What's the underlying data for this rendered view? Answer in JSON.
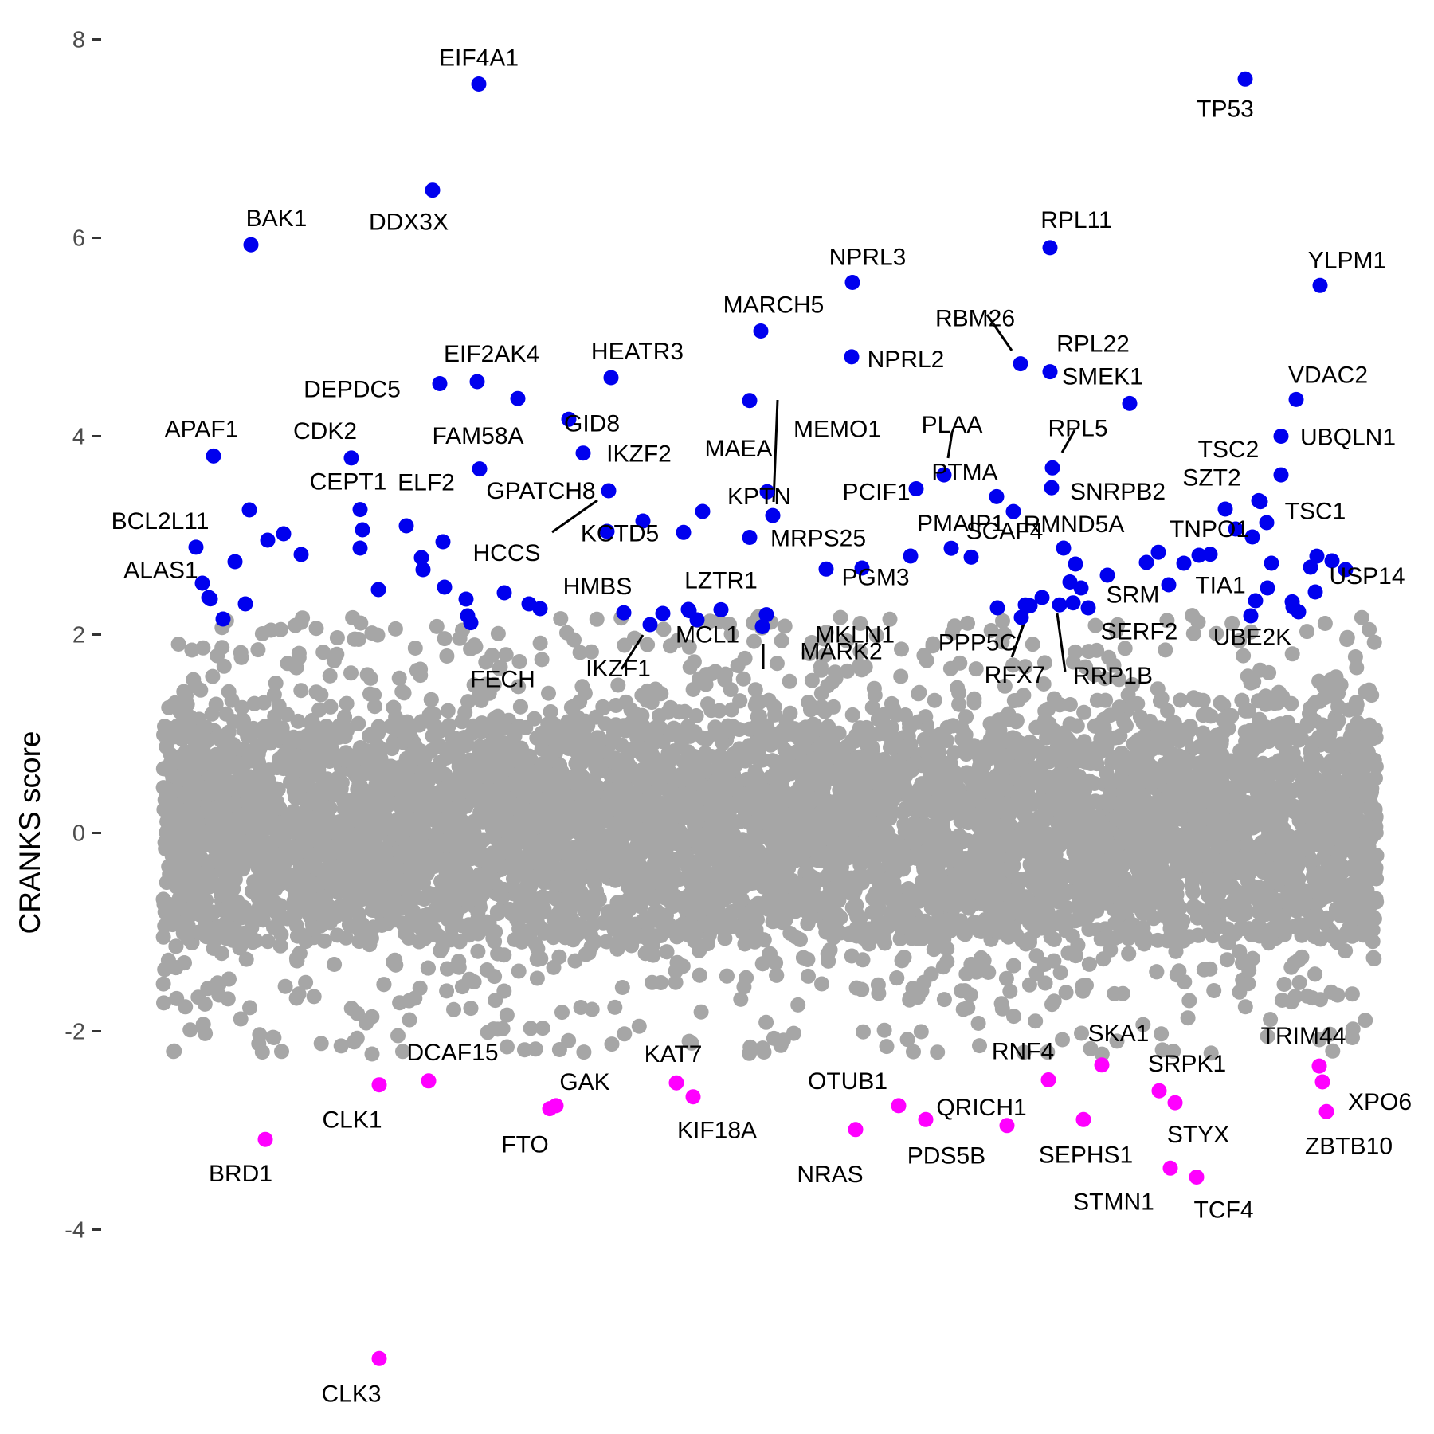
{
  "chart_data": {
    "type": "scatter",
    "title": "",
    "xlabel": "",
    "ylabel": "CRANKS score",
    "ylim": [
      -5.4,
      8.2
    ],
    "y_ticks": [
      {
        "value": 8,
        "label": "8"
      },
      {
        "value": 6,
        "label": "6"
      },
      {
        "value": 4,
        "label": "4"
      },
      {
        "value": 2,
        "label": "2"
      },
      {
        "value": 0,
        "label": "0"
      },
      {
        "value": -2,
        "label": "-2"
      },
      {
        "value": -4,
        "label": "-4"
      }
    ],
    "colors": {
      "background": "#a6a6a6",
      "positive": "#0000ee",
      "negative": "#ff00ff",
      "text": "#000000"
    },
    "grid": false,
    "legend": "none",
    "background_series": {
      "name": "",
      "color": "#a6a6a6",
      "count": 6000,
      "spread": "genes spread across all ranks, bulk between -1.5 and 1.5 CRANKS score"
    },
    "highlighted_positive": [
      {
        "gene": "EIF4A1",
        "y": 7.55
      },
      {
        "gene": "TP53",
        "y": 7.6
      },
      {
        "gene": "DDX3X",
        "y": 6.48
      },
      {
        "gene": "BAK1",
        "y": 5.93
      },
      {
        "gene": "RPL11",
        "y": 5.9
      },
      {
        "gene": "NPRL3",
        "y": 5.55
      },
      {
        "gene": "YLPM1",
        "y": 5.52
      },
      {
        "gene": "MARCH5",
        "y": 5.06
      },
      {
        "gene": "NPRL2",
        "y": 4.8
      },
      {
        "gene": "RBM26",
        "y": 4.73
      },
      {
        "gene": "RPL22",
        "y": 4.65
      },
      {
        "gene": "HEATR3",
        "y": 4.59
      },
      {
        "gene": "EIF2AK4",
        "y": 4.55
      },
      {
        "gene": "DEPDC5",
        "y": 4.53
      },
      {
        "gene": "FAM58A",
        "y": 4.38
      },
      {
        "gene": "MEMO1",
        "y": 4.36
      },
      {
        "gene": "VDAC2",
        "y": 4.37
      },
      {
        "gene": "SMEK1",
        "y": 4.33
      },
      {
        "gene": "GID8",
        "y": 4.17
      },
      {
        "gene": "UBQLN1",
        "y": 4.0
      },
      {
        "gene": "IKZF2",
        "y": 3.83
      },
      {
        "gene": "APAF1",
        "y": 3.8
      },
      {
        "gene": "CDK2",
        "y": 3.78
      },
      {
        "gene": "ELF2",
        "y": 3.67
      },
      {
        "gene": "RPL5",
        "y": 3.68
      },
      {
        "gene": "PLAA",
        "y": 3.61
      },
      {
        "gene": "TSC2",
        "y": 3.61
      },
      {
        "gene": "PCIF1",
        "y": 3.47
      },
      {
        "gene": "SNRPB2",
        "y": 3.48
      },
      {
        "gene": "GPATCH8",
        "y": 3.45
      },
      {
        "gene": "MAEA",
        "y": 3.44
      },
      {
        "gene": "PTMA",
        "y": 3.39
      },
      {
        "gene": "SZT2",
        "y": 3.35
      },
      {
        "gene": "TSC1",
        "y": 3.34
      },
      {
        "gene": "CEPT1",
        "y": 3.26
      },
      {
        "gene": "RMND5A",
        "y": 3.24
      },
      {
        "gene": "KPTN",
        "y": 3.2
      },
      {
        "gene": "HCCS",
        "y": 3.04
      },
      {
        "gene": "KCTD5",
        "y": 3.03
      },
      {
        "gene": "MRPS25",
        "y": 2.98
      },
      {
        "gene": "BCL2L11",
        "y": 2.88
      },
      {
        "gene": "PMAIP1",
        "y": 2.87
      },
      {
        "gene": "TNPO1",
        "y": 2.83
      },
      {
        "gene": "TIA1",
        "y": 2.81
      },
      {
        "gene": "SCAF4",
        "y": 2.78
      },
      {
        "gene": "USP14",
        "y": 2.79
      },
      {
        "gene": "PGM3",
        "y": 2.66
      },
      {
        "gene": "SRM",
        "y": 2.53
      },
      {
        "gene": "ALAS1",
        "y": 2.36
      },
      {
        "gene": "UBE2K",
        "y": 2.33
      },
      {
        "gene": "HMBS",
        "y": 2.22
      },
      {
        "gene": "LZTR1",
        "y": 2.25
      },
      {
        "gene": "PPP5C",
        "y": 2.29
      },
      {
        "gene": "SERF2",
        "y": 2.32
      },
      {
        "gene": "IKZF1",
        "y": 2.1
      },
      {
        "gene": "FECH",
        "y": 2.12
      },
      {
        "gene": "MKLN1",
        "y": 2.08
      },
      {
        "gene": "MCL1",
        "y": 2.24
      },
      {
        "gene": "MARK2",
        "y": 2.2
      },
      {
        "gene": "RFX7",
        "y": 2.3
      },
      {
        "gene": "RRP1B",
        "y": 2.3
      }
    ],
    "highlighted_negative": [
      {
        "gene": "SKA1",
        "y": -2.34
      },
      {
        "gene": "TRIM44",
        "y": -2.35
      },
      {
        "gene": "DCAF15",
        "y": -2.5
      },
      {
        "gene": "RNF4",
        "y": -2.49
      },
      {
        "gene": "KAT7",
        "y": -2.52
      },
      {
        "gene": "XPO6",
        "y": -2.51
      },
      {
        "gene": "CLK1",
        "y": -2.54
      },
      {
        "gene": "SRPK1",
        "y": -2.6
      },
      {
        "gene": "GAK",
        "y": -2.75
      },
      {
        "gene": "KIF18A",
        "y": -2.66
      },
      {
        "gene": "OTUB1",
        "y": -2.75
      },
      {
        "gene": "STYX",
        "y": -2.72
      },
      {
        "gene": "FTO",
        "y": -2.78
      },
      {
        "gene": "QRICH1",
        "y": -2.95
      },
      {
        "gene": "PDS5B",
        "y": -2.89
      },
      {
        "gene": "SEPHS1",
        "y": -2.89
      },
      {
        "gene": "ZBTB10",
        "y": -2.81
      },
      {
        "gene": "NRAS",
        "y": -2.99
      },
      {
        "gene": "BRD1",
        "y": -3.09
      },
      {
        "gene": "STMN1",
        "y": -3.38
      },
      {
        "gene": "TCF4",
        "y": -3.47
      },
      {
        "gene": "CLK3",
        "y": -5.3
      }
    ]
  }
}
